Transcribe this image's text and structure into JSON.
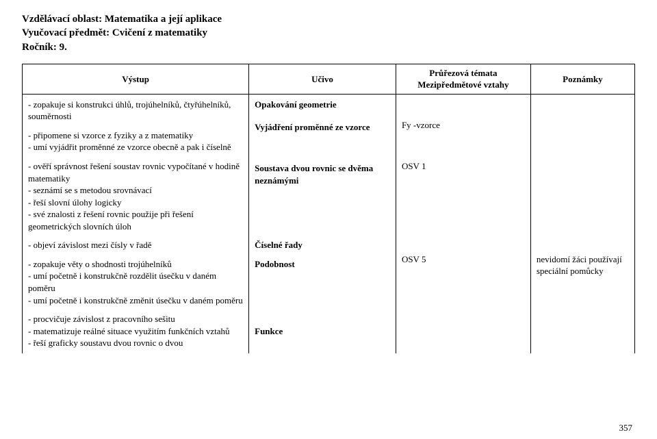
{
  "header": {
    "line1": "Vzdělávací oblast: Matematika a její aplikace",
    "line2": "Vyučovací předmět: Cvičení z matematiky",
    "line3": "Ročník: 9."
  },
  "table": {
    "head": {
      "c1": "Výstup",
      "c2": "Učivo",
      "c3a": "Průřezová témata",
      "c3b": "Mezipředmětové vztahy",
      "c4": "Poznámky"
    },
    "rows": [
      {
        "c1": "- zopakuje si konstrukci úhlů, trojúhelníků, čtyřúhelníků, souměrnosti",
        "c2": "Opakování geometrie",
        "c3": "",
        "c4": ""
      },
      {
        "c1": "- připomene si vzorce z fyziky a z matematiky\n- umí vyjádřit proměnné ze vzorce obecně a pak i číselně",
        "c2": "Vyjádření proměnné ze vzorce",
        "c3": "Fy -vzorce",
        "c4": ""
      },
      {
        "c1": "- ověří správnost řešení soustav rovnic vypočítané v hodině matematiky\n- seznámí se s metodou srovnávací\n- řeší slovní úlohy logicky\n- své znalosti z řešení rovnic použije při řešení geometrických slovních úloh",
        "c2": "Soustava dvou rovnic se dvěma neznámými",
        "c3": "OSV 1",
        "c4": ""
      },
      {
        "c1": "- objeví závislost mezi čísly v řadě",
        "c2": "Číselné řady",
        "c3": "",
        "c4": ""
      },
      {
        "c1": "- zopakuje věty o shodnosti trojúhelníků\n- umí početně i konstrukčně rozdělit úsečku v daném poměru\n- umí početně i konstrukčně změnit úsečku v daném poměru",
        "c2": "Podobnost",
        "c3": "OSV 5",
        "c4": "nevidomí žáci používají speciální pomůcky"
      },
      {
        "c1": "- procvičuje závislost z pracovního sešitu\n- matematizuje reálné situace využitím funkčních vztahů\n- řeší graficky soustavu dvou rovnic o dvou",
        "c2": "Funkce",
        "c3": "",
        "c4": ""
      }
    ]
  },
  "pagenum": "357"
}
